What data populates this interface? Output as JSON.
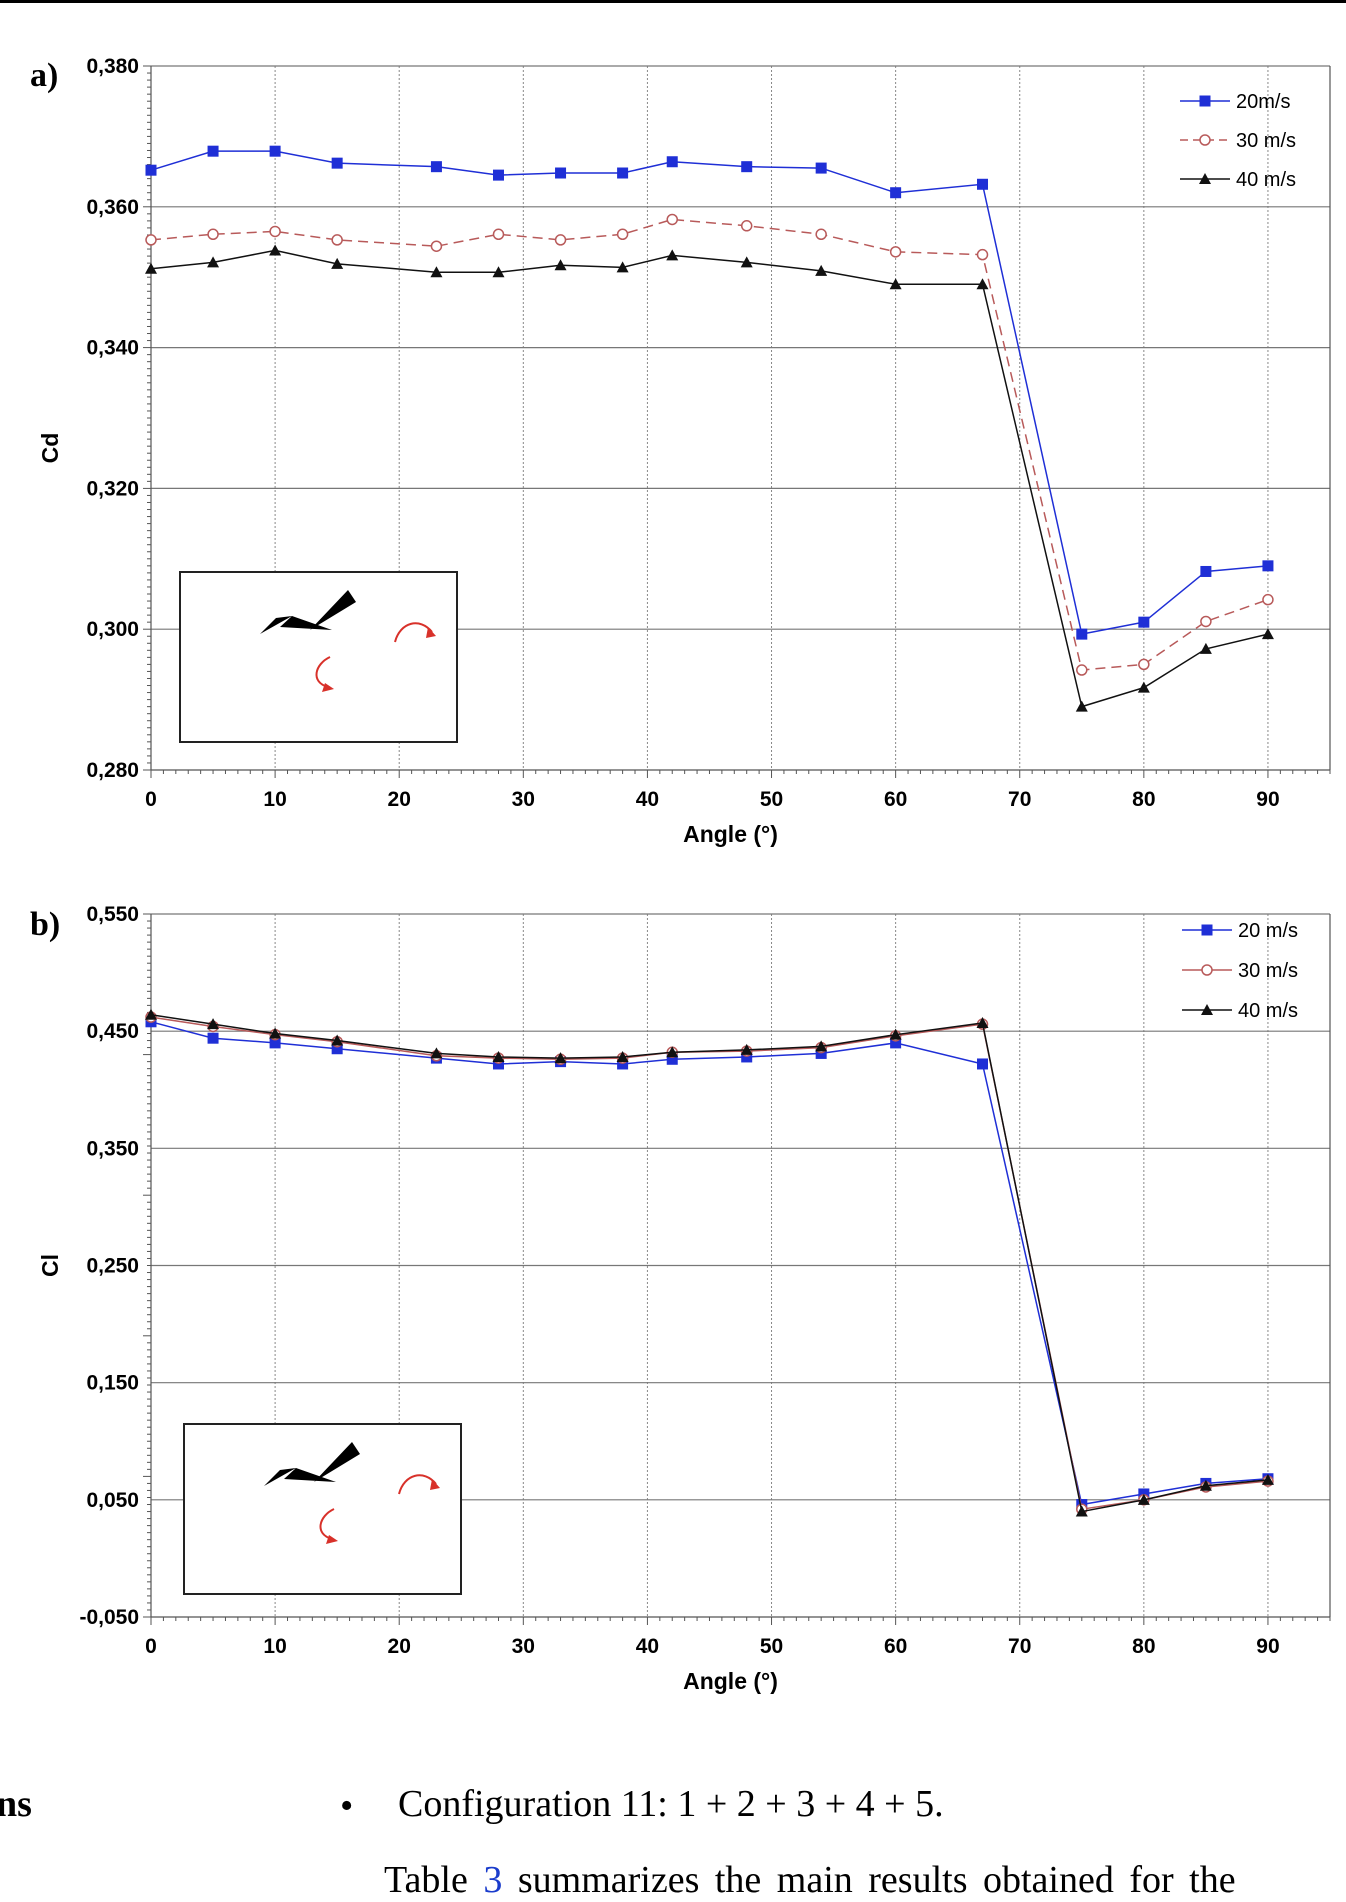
{
  "chart_data": [
    {
      "panel_label": "a)",
      "type": "line",
      "xlabel": "Angle (°)",
      "ylabel": "Cd",
      "xlim": [
        0,
        95
      ],
      "ylim": [
        0.28,
        0.38
      ],
      "x_ticks": [
        0,
        10,
        20,
        30,
        40,
        50,
        60,
        70,
        80,
        90
      ],
      "x_tick_labels": [
        "0",
        "10",
        "20",
        "30",
        "40",
        "50",
        "60",
        "70",
        "80",
        "90"
      ],
      "y_ticks": [
        0.28,
        0.3,
        0.32,
        0.34,
        0.36,
        0.38
      ],
      "y_tick_labels": [
        "0,280",
        "0,300",
        "0,320",
        "0,340",
        "0,360",
        "0,380"
      ],
      "grid": "horizontal solid, vertical dotted",
      "legend_position": "top-right",
      "x": [
        0,
        5,
        10,
        15,
        23,
        28,
        33,
        38,
        42,
        48,
        54,
        60,
        67,
        75,
        80,
        85,
        90
      ],
      "series": [
        {
          "name": "20m/s",
          "color": "#1f2fd6",
          "marker": "square",
          "dash": "solid",
          "values": [
            0.3652,
            0.3679,
            0.3679,
            0.3662,
            0.3657,
            0.3645,
            0.3648,
            0.3648,
            0.3664,
            0.3657,
            0.3655,
            0.362,
            0.3632,
            0.2993,
            0.301,
            0.3082,
            0.309
          ]
        },
        {
          "name": "30 m/s",
          "color": "#b85a5a",
          "marker": "circle-open",
          "dash": "dashed",
          "values": [
            0.3553,
            0.3561,
            0.3565,
            0.3553,
            0.3544,
            0.3561,
            0.3553,
            0.3561,
            0.3582,
            0.3573,
            0.3561,
            0.3536,
            0.3532,
            0.2942,
            0.295,
            0.3011,
            0.3042
          ]
        },
        {
          "name": "40 m/s",
          "color": "#111111",
          "marker": "triangle",
          "dash": "solid",
          "values": [
            0.3512,
            0.3521,
            0.3538,
            0.3519,
            0.3507,
            0.3507,
            0.3517,
            0.3514,
            0.3531,
            0.3521,
            0.3509,
            0.349,
            0.349,
            0.289,
            0.2917,
            0.2972,
            0.2993
          ]
        }
      ]
    },
    {
      "panel_label": "b)",
      "type": "line",
      "xlabel": "Angle (°)",
      "ylabel": "Cl",
      "xlim": [
        0,
        95
      ],
      "ylim": [
        -0.05,
        0.55
      ],
      "x_ticks": [
        0,
        10,
        20,
        30,
        40,
        50,
        60,
        70,
        80,
        90
      ],
      "x_tick_labels": [
        "0",
        "10",
        "20",
        "30",
        "40",
        "50",
        "60",
        "70",
        "80",
        "90"
      ],
      "y_ticks": [
        -0.05,
        0.05,
        0.15,
        0.25,
        0.35,
        0.45,
        0.55
      ],
      "y_tick_labels": [
        "-0,050",
        "0,050",
        "0,150",
        "0,250",
        "0,350",
        "0,450",
        "0,550"
      ],
      "grid": "horizontal solid, vertical dotted",
      "legend_position": "top-right",
      "x": [
        0,
        5,
        10,
        15,
        23,
        28,
        33,
        38,
        42,
        48,
        54,
        60,
        67,
        75,
        80,
        85,
        90
      ],
      "series": [
        {
          "name": "20 m/s",
          "color": "#1f2fd6",
          "marker": "square",
          "dash": "solid",
          "values": [
            0.458,
            0.444,
            0.44,
            0.435,
            0.427,
            0.422,
            0.424,
            0.422,
            0.426,
            0.428,
            0.431,
            0.44,
            0.422,
            0.046,
            0.055,
            0.064,
            0.068
          ]
        },
        {
          "name": "30 m/s",
          "color": "#b85a5a",
          "marker": "circle-open",
          "dash": "solid",
          "values": [
            0.462,
            0.454,
            0.447,
            0.441,
            0.429,
            0.427,
            0.426,
            0.427,
            0.432,
            0.433,
            0.436,
            0.446,
            0.456,
            0.042,
            0.05,
            0.061,
            0.066
          ]
        },
        {
          "name": "40 m/s",
          "color": "#111111",
          "marker": "triangle",
          "dash": "solid",
          "values": [
            0.464,
            0.456,
            0.448,
            0.442,
            0.431,
            0.428,
            0.427,
            0.428,
            0.432,
            0.434,
            0.437,
            0.447,
            0.457,
            0.04,
            0.05,
            0.062,
            0.067
          ]
        }
      ]
    }
  ],
  "text_below": {
    "heading_fragment": "ns",
    "bullet": "•",
    "config_line": "Configuration 11: 1 + 2 + 3 + 4 + 5.",
    "para_prefix": "Table ",
    "para_link": "3",
    "para_suffix": " summarizes the main results obtained for the"
  }
}
